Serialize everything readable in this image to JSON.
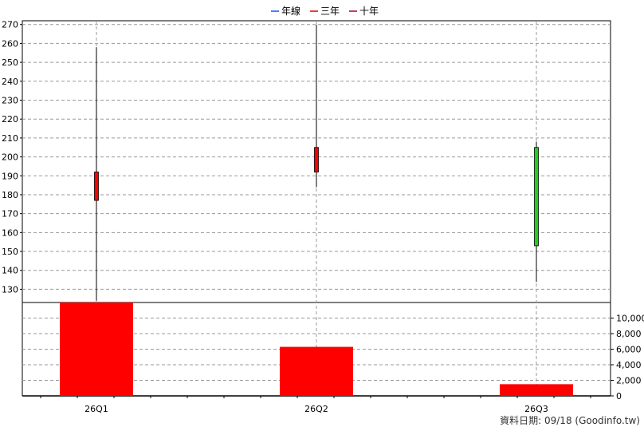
{
  "chart_data": {
    "type": "candlestick",
    "legend": {
      "placement": "top-center",
      "items": [
        {
          "label": "年線",
          "color": "#1f4fff"
        },
        {
          "label": "三年",
          "color": "#e00000"
        },
        {
          "label": "十年",
          "color": "#a00040"
        }
      ]
    },
    "categories": [
      "26Q1",
      "26Q2",
      "26Q3"
    ],
    "price": {
      "ylim": [
        123,
        272
      ],
      "ticks": [
        130,
        140,
        150,
        160,
        170,
        180,
        190,
        200,
        210,
        220,
        230,
        240,
        250,
        260,
        270
      ],
      "candles": [
        {
          "open": 177,
          "high": 258,
          "low": 124,
          "close": 192,
          "color": "#ff0000"
        },
        {
          "open": 192,
          "high": 270,
          "low": 184,
          "close": 205,
          "color": "#ff0000"
        },
        {
          "open": 205,
          "high": 208,
          "low": 134,
          "close": 153,
          "color": "#22cc22"
        }
      ]
    },
    "volume": {
      "ylim": [
        0,
        12000
      ],
      "ticks": [
        0,
        2000,
        4000,
        6000,
        8000,
        10000
      ],
      "tick_labels": [
        "0",
        "2,000",
        "4,000",
        "6,000",
        "8,000",
        "10,000"
      ],
      "values": [
        12000,
        6300,
        1500
      ],
      "color": "#ff0000"
    },
    "grid": true
  },
  "footer": "資料日期: 09/18  (Goodinfo.tw)"
}
